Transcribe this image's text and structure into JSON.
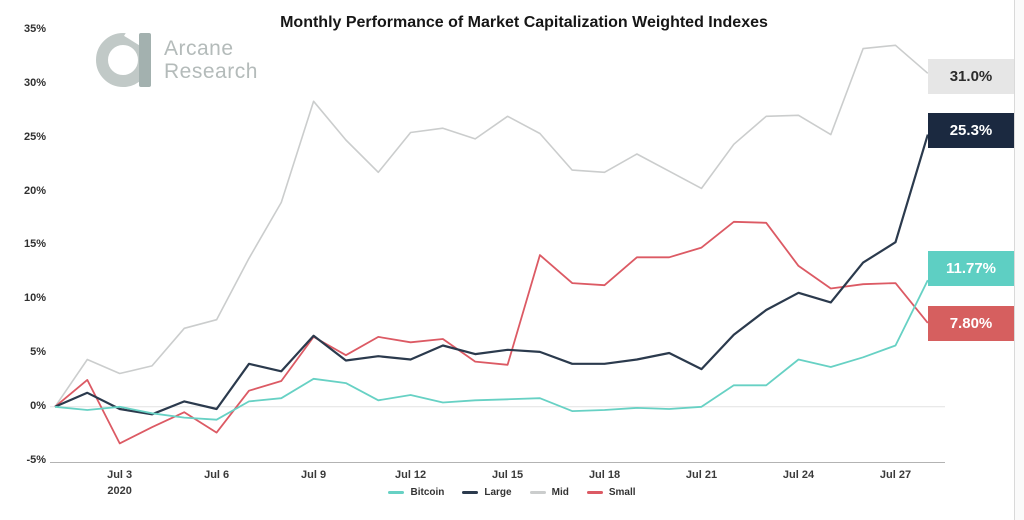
{
  "header": {
    "logo_line1": "Arcane",
    "logo_line2": "Research",
    "title": "Monthly Performance of Market Capitalization Weighted Indexes"
  },
  "chart_data": {
    "type": "line",
    "title": "Monthly Performance of Market Capitalization Weighted Indexes",
    "xlabel": "",
    "ylabel": "",
    "ylim": [
      -5,
      35
    ],
    "grid": "zero-line-only",
    "legend_position": "bottom",
    "y_ticks": [
      {
        "value": 35,
        "label": "35%"
      },
      {
        "value": 30,
        "label": "30%"
      },
      {
        "value": 25,
        "label": "25%"
      },
      {
        "value": 20,
        "label": "20%"
      },
      {
        "value": 15,
        "label": "15%"
      },
      {
        "value": 10,
        "label": "10%"
      },
      {
        "value": 5,
        "label": "5%"
      },
      {
        "value": 0,
        "label": "0%"
      },
      {
        "value": -5,
        "label": "-5%"
      }
    ],
    "x": [
      "Jul 1",
      "Jul 2",
      "Jul 3",
      "Jul 4",
      "Jul 5",
      "Jul 6",
      "Jul 7",
      "Jul 8",
      "Jul 9",
      "Jul 10",
      "Jul 11",
      "Jul 12",
      "Jul 13",
      "Jul 14",
      "Jul 15",
      "Jul 16",
      "Jul 17",
      "Jul 18",
      "Jul 19",
      "Jul 20",
      "Jul 21",
      "Jul 22",
      "Jul 23",
      "Jul 24",
      "Jul 25",
      "Jul 26",
      "Jul 27",
      "Jul 28"
    ],
    "x_tick_indices": [
      2,
      5,
      8,
      11,
      14,
      17,
      20,
      23,
      26
    ],
    "x_tick_labels": [
      "Jul 3",
      "Jul 6",
      "Jul 9",
      "Jul 12",
      "Jul 15",
      "Jul 18",
      "Jul 21",
      "Jul 24",
      "Jul 27"
    ],
    "x_sub_label": "2020",
    "series": [
      {
        "name": "Mid",
        "color": "#cbcdcd",
        "end_label": "31.0%",
        "end_label_bg": "#e6e6e6",
        "end_label_color": "#2b2b2b",
        "values": [
          0,
          4.4,
          3.1,
          3.8,
          7.3,
          8.1,
          13.8,
          19.0,
          28.4,
          24.8,
          21.8,
          25.5,
          25.9,
          24.9,
          27.0,
          25.4,
          22.0,
          21.8,
          23.5,
          21.9,
          20.3,
          24.4,
          27.0,
          27.1,
          25.3,
          33.3,
          33.6,
          31.0
        ]
      },
      {
        "name": "Small",
        "color": "#dc5a64",
        "end_label": "7.80%",
        "end_label_bg": "#d65f5f",
        "end_label_color": "#ffffff",
        "values": [
          0,
          2.5,
          -3.4,
          -1.9,
          -0.5,
          -2.4,
          1.5,
          2.4,
          6.5,
          4.8,
          6.5,
          6.0,
          6.3,
          4.2,
          3.9,
          14.1,
          11.5,
          11.3,
          13.9,
          13.9,
          14.8,
          17.2,
          17.1,
          13.1,
          11.0,
          11.4,
          11.5,
          7.8
        ]
      },
      {
        "name": "Large",
        "color": "#2b3a4d",
        "end_label": "25.3%",
        "end_label_bg": "#1b2940",
        "end_label_color": "#ffffff",
        "values": [
          0,
          1.3,
          -0.2,
          -0.7,
          0.5,
          -0.2,
          4.0,
          3.3,
          6.6,
          4.3,
          4.7,
          4.4,
          5.7,
          4.9,
          5.3,
          5.1,
          4.0,
          4.0,
          4.4,
          5.0,
          3.5,
          6.7,
          9.0,
          10.6,
          9.7,
          13.4,
          15.3,
          25.3
        ]
      },
      {
        "name": "Bitcoin",
        "color": "#67d1c4",
        "end_label": "11.77%",
        "end_label_bg": "#5ecfc3",
        "end_label_color": "#ffffff",
        "values": [
          0,
          -0.3,
          0.0,
          -0.6,
          -1.0,
          -1.2,
          0.5,
          0.8,
          2.6,
          2.2,
          0.6,
          1.1,
          0.4,
          0.6,
          0.7,
          0.8,
          -0.4,
          -0.3,
          -0.1,
          -0.2,
          0.0,
          2.0,
          2.0,
          4.4,
          3.7,
          4.6,
          5.7,
          11.77
        ]
      }
    ],
    "legend_order": [
      "Bitcoin",
      "Large",
      "Mid",
      "Small"
    ]
  }
}
